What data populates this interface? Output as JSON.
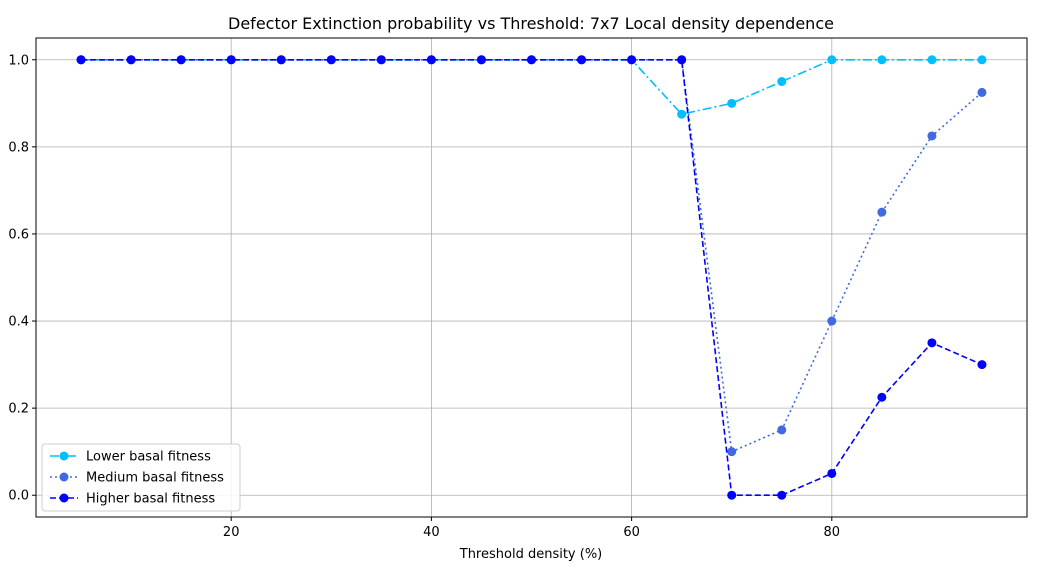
{
  "chart_data": {
    "type": "line",
    "title": "Defector Extinction probability vs Threshold: 7x7 Local density dependence",
    "xlabel": "Threshold density (%)",
    "ylabel": "",
    "xlim": [
      0.5,
      99.5
    ],
    "ylim": [
      -0.05,
      1.05
    ],
    "x_ticks": [
      20,
      40,
      60,
      80
    ],
    "y_ticks": [
      0.0,
      0.2,
      0.4,
      0.6,
      0.8,
      1.0
    ],
    "x_tick_labels": [
      "20",
      "40",
      "60",
      "80"
    ],
    "y_tick_labels": [
      "0.0",
      "0.2",
      "0.4",
      "0.6",
      "0.8",
      "1.0"
    ],
    "grid": true,
    "legend_position": "bottom-left",
    "x": [
      5,
      10,
      15,
      20,
      25,
      30,
      35,
      40,
      45,
      50,
      55,
      60,
      65,
      70,
      75,
      80,
      85,
      90,
      95
    ],
    "series": [
      {
        "name": "Lower basal fitness",
        "color": "#00bfff",
        "line_style": "dashdot",
        "values": [
          1.0,
          1.0,
          1.0,
          1.0,
          1.0,
          1.0,
          1.0,
          1.0,
          1.0,
          1.0,
          1.0,
          1.0,
          0.875,
          0.9,
          0.95,
          1.0,
          1.0,
          1.0,
          1.0
        ]
      },
      {
        "name": "Medium basal fitness",
        "color": "#4169e1",
        "line_style": "dotted",
        "values": [
          1.0,
          1.0,
          1.0,
          1.0,
          1.0,
          1.0,
          1.0,
          1.0,
          1.0,
          1.0,
          1.0,
          1.0,
          1.0,
          0.1,
          0.15,
          0.4,
          0.65,
          0.825,
          0.925
        ]
      },
      {
        "name": "Higher basal fitness",
        "color": "#0000ff",
        "line_style": "dashed",
        "values": [
          1.0,
          1.0,
          1.0,
          1.0,
          1.0,
          1.0,
          1.0,
          1.0,
          1.0,
          1.0,
          1.0,
          1.0,
          1.0,
          0.0,
          0.0,
          0.05,
          0.225,
          0.35,
          0.3
        ]
      }
    ]
  }
}
